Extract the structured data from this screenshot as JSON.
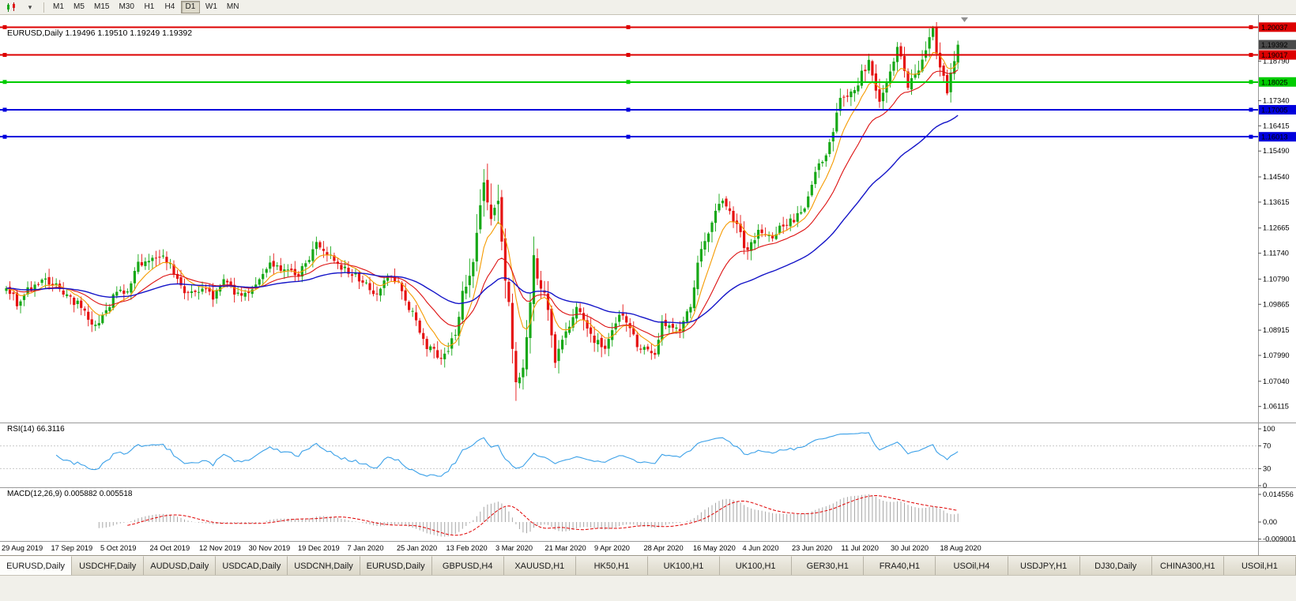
{
  "toolbar": {
    "chart_icon": "candlestick-chart-icon",
    "dropdown_glyph": "▾",
    "timeframes": [
      "M1",
      "M5",
      "M15",
      "M30",
      "H1",
      "H4",
      "D1",
      "W1",
      "MN"
    ],
    "active_timeframe": "D1"
  },
  "chart": {
    "title": "EURUSD,Daily",
    "ohlc": "1.19496 1.19510 1.19249 1.19392",
    "current_price_label": "1.19392",
    "current_price_tag_color": "#4a4a4a"
  },
  "rsi": {
    "name": "RSI(14)",
    "value": "66.3116",
    "axis": [
      "100",
      "70",
      "30",
      "0"
    ],
    "levels": [
      70,
      30
    ],
    "color": "#3aa0e8"
  },
  "macd": {
    "name": "MACD(12,26,9)",
    "values": "0.005882 0.005518",
    "axis": [
      "0.014556",
      "0.00",
      "-0.009001"
    ],
    "range_max": 0.014556,
    "range_min": -0.009001,
    "hist_color": "#a6a6a6",
    "signal_color": "#e00000"
  },
  "chart_data": {
    "type": "candlestick",
    "symbol": "EURUSD",
    "timeframe": "Daily",
    "ylim": [
      1.057,
      1.2025
    ],
    "num_candles": 268,
    "up_color": "#17a817",
    "down_color": "#e51212",
    "x_labels": [
      "29 Aug 2019",
      "17 Sep 2019",
      "5 Oct 2019",
      "24 Oct 2019",
      "12 Nov 2019",
      "30 Nov 2019",
      "19 Dec 2019",
      "7 Jan 2020",
      "25 Jan 2020",
      "13 Feb 2020",
      "3 Mar 2020",
      "21 Mar 2020",
      "9 Apr 2020",
      "28 Apr 2020",
      "16 May 2020",
      "4 Jun 2020",
      "23 Jun 2020",
      "11 Jul 2020",
      "30 Jul 2020",
      "18 Aug 2020"
    ],
    "y_ticks": [
      "1.18790",
      "1.17340",
      "1.16415",
      "1.15490",
      "1.14540",
      "1.13615",
      "1.12665",
      "1.11740",
      "1.10790",
      "1.09865",
      "1.08915",
      "1.07990",
      "1.07040",
      "1.06115"
    ],
    "hlines": [
      {
        "price": 1.20037,
        "label": "1.20037",
        "color": "#dd0000",
        "style": "solid"
      },
      {
        "price": 1.19017,
        "label": "1.19017",
        "color": "#dd0000",
        "style": "solid"
      },
      {
        "price": 1.18025,
        "label": "1.18025",
        "color": "#00cc00",
        "style": "solid"
      },
      {
        "price": 1.17005,
        "label": "1.17005",
        "color": "#0000dd",
        "style": "solid"
      },
      {
        "price": 1.16013,
        "label": "1.16013",
        "color": "#0000dd",
        "style": "solid"
      }
    ],
    "moving_averages": [
      {
        "name": "fast-ma",
        "period": 8,
        "color": "#f59a00"
      },
      {
        "name": "mid-ma",
        "period": 21,
        "color": "#dd1111"
      },
      {
        "name": "slow-ma",
        "period": 55,
        "color": "#1414c8"
      }
    ],
    "indicators": {
      "rsi": {
        "period": 14,
        "last": 66.3116,
        "range": [
          0,
          100
        ]
      },
      "macd": {
        "fast": 12,
        "slow": 26,
        "signal": 9,
        "last_main": 0.005882,
        "last_signal": 0.005518
      }
    },
    "anchor_closes": [
      [
        0,
        1.1057,
        1
      ],
      [
        3,
        1.099,
        1
      ],
      [
        6,
        1.104,
        1
      ],
      [
        10,
        1.107,
        1
      ],
      [
        13,
        1.1068,
        1
      ],
      [
        17,
        1.101,
        1
      ],
      [
        20,
        1.099,
        1
      ],
      [
        23,
        1.0935,
        1
      ],
      [
        25,
        1.09,
        1
      ],
      [
        28,
        1.096,
        1
      ],
      [
        31,
        1.104,
        1
      ],
      [
        34,
        1.103,
        1
      ],
      [
        37,
        1.113,
        1
      ],
      [
        41,
        1.116,
        1
      ],
      [
        45,
        1.115,
        1
      ],
      [
        48,
        1.108,
        1
      ],
      [
        51,
        1.102,
        1
      ],
      [
        55,
        1.105,
        1
      ],
      [
        58,
        1.101,
        1
      ],
      [
        61,
        1.1075,
        1
      ],
      [
        65,
        1.1018,
        1
      ],
      [
        68,
        1.102,
        1
      ],
      [
        71,
        1.1075,
        1
      ],
      [
        74,
        1.113,
        1
      ],
      [
        78,
        1.112,
        1
      ],
      [
        82,
        1.109,
        1
      ],
      [
        87,
        1.121,
        1
      ],
      [
        90,
        1.117,
        1
      ],
      [
        94,
        1.1122,
        1
      ],
      [
        98,
        1.1095,
        1
      ],
      [
        104,
        1.1024,
        1
      ],
      [
        107,
        1.1093,
        1
      ],
      [
        110,
        1.106,
        1
      ],
      [
        114,
        1.095,
        1
      ],
      [
        118,
        1.0832,
        1
      ],
      [
        122,
        1.0786,
        1.3
      ],
      [
        126,
        1.088,
        1.6
      ],
      [
        128,
        1.1027,
        2
      ],
      [
        131,
        1.113,
        2.3
      ],
      [
        134,
        1.1446,
        2.6
      ],
      [
        136,
        1.128,
        2.6
      ],
      [
        138,
        1.135,
        2.6
      ],
      [
        140,
        1.11,
        2.6
      ],
      [
        143,
        1.069,
        2.6
      ],
      [
        145,
        1.0724,
        2.3
      ],
      [
        148,
        1.1141,
        2.2
      ],
      [
        151,
        1.1031,
        1.8
      ],
      [
        154,
        1.0791,
        1.5
      ],
      [
        157,
        1.087,
        1.4
      ],
      [
        160,
        1.098,
        1.3
      ],
      [
        164,
        1.087,
        1.2
      ],
      [
        168,
        1.0822,
        1.2
      ],
      [
        172,
        1.0955,
        1.2
      ],
      [
        175,
        1.09,
        1.1
      ],
      [
        177,
        1.0834,
        1.1
      ],
      [
        180,
        1.081,
        1
      ],
      [
        182,
        1.0805,
        1
      ],
      [
        184,
        1.0915,
        1
      ],
      [
        189,
        1.09,
        1
      ],
      [
        192,
        1.098,
        1
      ],
      [
        194,
        1.1135,
        1.2
      ],
      [
        198,
        1.129,
        1.2
      ],
      [
        201,
        1.1375,
        1.3
      ],
      [
        204,
        1.13,
        1.2
      ],
      [
        208,
        1.1177,
        1.2
      ],
      [
        211,
        1.125,
        1
      ],
      [
        215,
        1.1234,
        1
      ],
      [
        218,
        1.128,
        1
      ],
      [
        221,
        1.13,
        1
      ],
      [
        224,
        1.134,
        1.1
      ],
      [
        228,
        1.15,
        1.2
      ],
      [
        231,
        1.1571,
        1.2
      ],
      [
        234,
        1.174,
        1.2
      ],
      [
        238,
        1.1778,
        1.2
      ],
      [
        240,
        1.183,
        1.2
      ],
      [
        242,
        1.1875,
        1.2
      ],
      [
        245,
        1.174,
        1.3
      ],
      [
        248,
        1.185,
        1.2
      ],
      [
        250,
        1.193,
        1.2
      ],
      [
        253,
        1.1796,
        1.3
      ],
      [
        256,
        1.185,
        1.2
      ],
      [
        258,
        1.192,
        1.2
      ],
      [
        260,
        1.1991,
        1.3
      ],
      [
        262,
        1.185,
        1.3
      ],
      [
        264,
        1.177,
        1.2
      ],
      [
        266,
        1.189,
        1.2
      ],
      [
        267,
        1.1939,
        1
      ]
    ],
    "current_close": 1.19392
  },
  "tabs": {
    "items": [
      {
        "label": "EURUSD,Daily",
        "active": true
      },
      {
        "label": "USDCHF,Daily",
        "active": false
      },
      {
        "label": "AUDUSD,Daily",
        "active": false
      },
      {
        "label": "USDCAD,Daily",
        "active": false
      },
      {
        "label": "USDCNH,Daily",
        "active": false
      },
      {
        "label": "EURUSD,Daily",
        "active": false
      },
      {
        "label": "GBPUSD,H4",
        "active": false
      },
      {
        "label": "XAUUSD,H1",
        "active": false
      },
      {
        "label": "HK50,H1",
        "active": false
      },
      {
        "label": "UK100,H1",
        "active": false
      },
      {
        "label": "UK100,H1",
        "active": false
      },
      {
        "label": "GER30,H1",
        "active": false
      },
      {
        "label": "FRA40,H1",
        "active": false
      },
      {
        "label": "USOil,H4",
        "active": false
      },
      {
        "label": "USDJPY,H1",
        "active": false
      },
      {
        "label": "DJ30,Daily",
        "active": false
      },
      {
        "label": "CHINA300,H1",
        "active": false
      },
      {
        "label": "USOil,H1",
        "active": false
      }
    ]
  }
}
